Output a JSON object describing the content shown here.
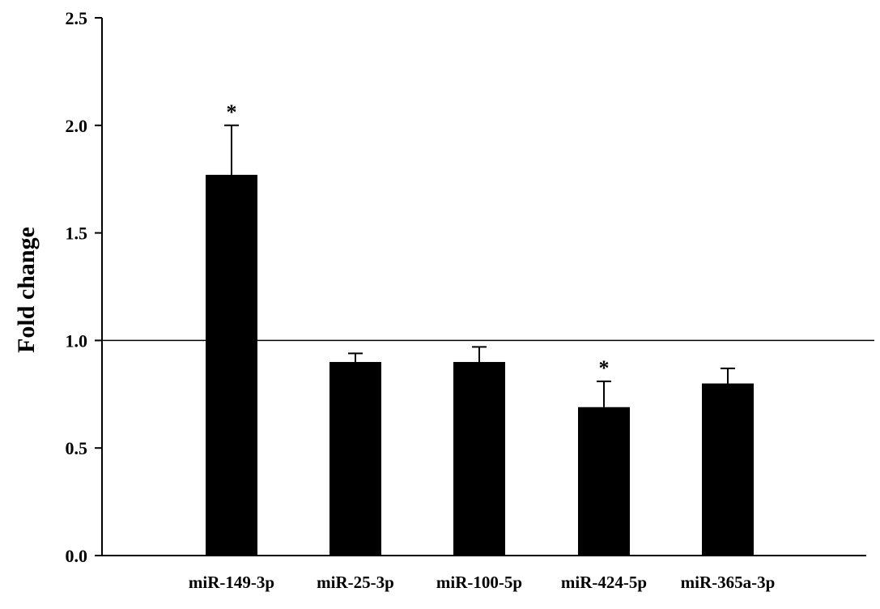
{
  "chart_data": {
    "type": "bar",
    "title": "",
    "xlabel": "",
    "ylabel": "Fold change",
    "ylim": [
      0,
      2.5
    ],
    "yticks": [
      "0.0",
      "0.5",
      "1.0",
      "1.5",
      "2.0",
      "2.5"
    ],
    "ytick_values": [
      0,
      0.5,
      1.0,
      1.5,
      2.0,
      2.5
    ],
    "reference_line": 1.0,
    "categories": [
      "miR-149-3p",
      "miR-25-3p",
      "miR-100-5p",
      "miR-424-5p",
      "miR-365a-3p"
    ],
    "values": [
      1.77,
      0.9,
      0.9,
      0.69,
      0.8
    ],
    "errors": [
      0.23,
      0.04,
      0.07,
      0.12,
      0.07
    ],
    "significance": [
      "*",
      "",
      "",
      "*",
      ""
    ],
    "bar_color": "#000000",
    "grid": false,
    "legend": "none"
  }
}
